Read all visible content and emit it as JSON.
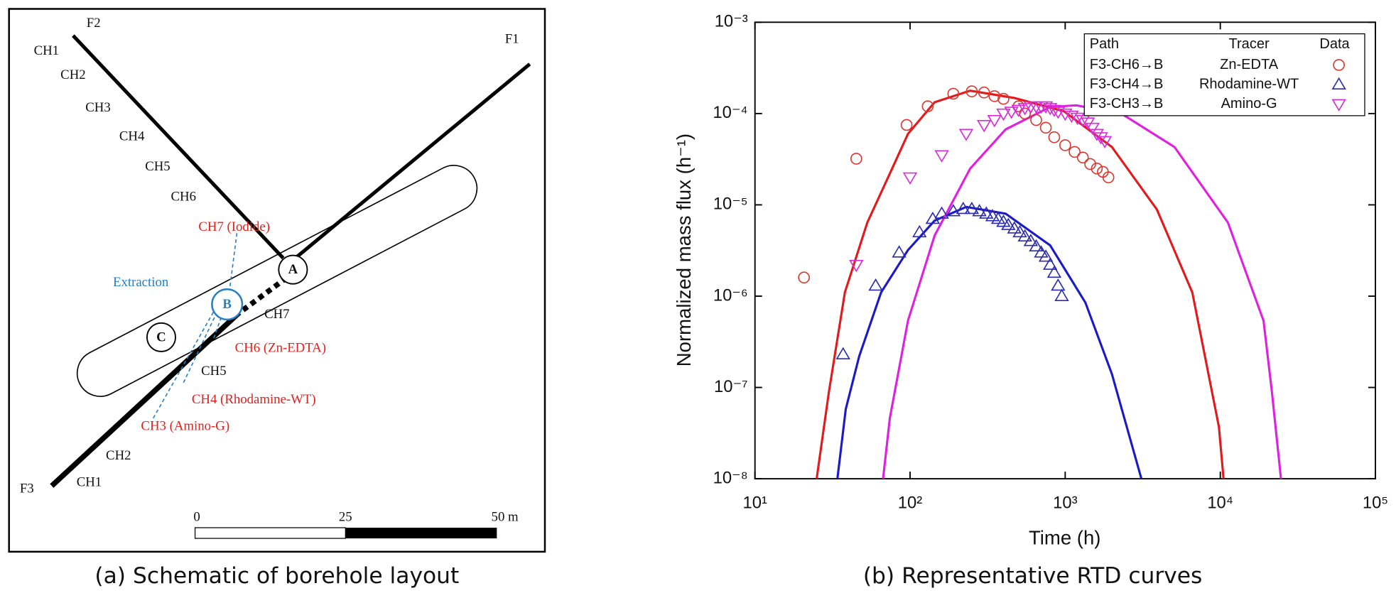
{
  "diagram": {
    "fractures": [
      "F1",
      "F2",
      "F3"
    ],
    "f2_channels": [
      "CH1",
      "CH2",
      "CH3",
      "CH4",
      "CH5",
      "CH6"
    ],
    "injection": [
      "CH7 (Iodide)",
      "CH6 (Zn-EDTA)",
      "CH4 (Rhodamine-WT)",
      "CH3 (Amino-G)"
    ],
    "f3_channels": [
      "CH7",
      "CH5",
      "CH2",
      "CH1"
    ],
    "extraction": "Extraction",
    "boreholes": [
      "A",
      "B",
      "C"
    ],
    "scale": [
      "0",
      "25",
      "50 m"
    ],
    "caption": "(a) Schematic of borehole layout"
  },
  "chart_data": {
    "type": "scatter",
    "caption": "(b) Representative RTD curves",
    "x_label": "Time (h)",
    "y_label": "Normalized mass flux (h⁻¹)",
    "log_x": true,
    "log_y": true,
    "xlim": [
      10,
      100000
    ],
    "ylim": [
      1e-08,
      0.001
    ],
    "xticks": [
      {
        "value": 10,
        "label": "10¹"
      },
      {
        "value": 100,
        "label": "10²"
      },
      {
        "value": 1000,
        "label": "10³"
      },
      {
        "value": 10000,
        "label": "10⁴"
      },
      {
        "value": 100000,
        "label": "10⁵"
      }
    ],
    "yticks": [
      {
        "value": 1e-08,
        "label": "10⁻⁸"
      },
      {
        "value": 1e-07,
        "label": "10⁻⁷"
      },
      {
        "value": 1e-06,
        "label": "10⁻⁶"
      },
      {
        "value": 1e-05,
        "label": "10⁻⁵"
      },
      {
        "value": 0.0001,
        "label": "10⁻⁴"
      },
      {
        "value": 0.001,
        "label": "10⁻³"
      }
    ],
    "legend_headers": [
      "Path",
      "Tracer",
      "Data"
    ],
    "legend": "upper right",
    "series": [
      {
        "name": "F3-CH6→B",
        "tracer": "Zn-EDTA",
        "color": "#d9372f",
        "marker": "circle",
        "x": [
          20.7,
          45,
          95,
          130,
          190,
          250,
          300,
          350,
          400,
          500,
          550,
          650,
          750,
          850,
          1000,
          1150,
          1300,
          1450,
          1600,
          1750,
          1900
        ],
        "values": [
          1.6e-06,
          3.2e-05,
          7.5e-05,
          0.00012,
          0.000165,
          0.000175,
          0.00017,
          0.000155,
          0.000145,
          0.00012,
          0.0001,
          8.5e-05,
          7e-05,
          5.5e-05,
          4.5e-05,
          3.8e-05,
          3.3e-05,
          2.8e-05,
          2.5e-05,
          2.3e-05,
          2e-05
        ]
      },
      {
        "name": "F3-CH4→B",
        "tracer": "Rhodamine-WT",
        "color": "#2b2bb0",
        "marker": "triangle-up",
        "x": [
          37,
          60,
          85,
          115,
          140,
          160,
          190,
          220,
          250,
          280,
          310,
          340,
          370,
          400,
          430,
          470,
          510,
          550,
          600,
          650,
          700,
          750,
          800,
          850,
          900,
          950
        ],
        "values": [
          2.3e-07,
          1.3e-06,
          3e-06,
          5e-06,
          7e-06,
          8e-06,
          8.5e-06,
          9e-06,
          9e-06,
          8.5e-06,
          8e-06,
          7.5e-06,
          7e-06,
          6.5e-06,
          6e-06,
          5.5e-06,
          5e-06,
          4.5e-06,
          4e-06,
          3.5e-06,
          3e-06,
          2.7e-06,
          2.2e-06,
          1.8e-06,
          1.3e-06,
          1e-06
        ]
      },
      {
        "name": "F3-CH3→B",
        "tracer": "Amino-G",
        "color": "#d82ad8",
        "marker": "triangle-down",
        "x": [
          45,
          100,
          160,
          230,
          300,
          350,
          400,
          450,
          500,
          550,
          600,
          650,
          700,
          750,
          800,
          850,
          900,
          1000,
          1100,
          1200,
          1300,
          1400,
          1500,
          1600,
          1700,
          1800
        ],
        "values": [
          2.2e-06,
          2e-05,
          3.5e-05,
          6e-05,
          7.5e-05,
          8.5e-05,
          0.0001,
          0.000105,
          0.00011,
          0.000115,
          0.00012,
          0.00012,
          0.00012,
          0.00012,
          0.000115,
          0.00011,
          0.000105,
          0.0001,
          9.5e-05,
          9e-05,
          8.5e-05,
          8e-05,
          7e-05,
          6e-05,
          5.5e-05,
          5e-05
        ]
      }
    ],
    "fits": [
      {
        "color": "#e31a1c",
        "x": [
          25,
          30,
          38,
          53,
          74,
          97,
          144,
          244,
          470,
          980,
          2000,
          3900,
          6600,
          9800,
          10500
        ],
        "values": [
          1e-08,
          9e-08,
          1.1e-06,
          6.4e-06,
          2.2e-05,
          6e-05,
          0.000133,
          0.000178,
          0.000148,
          0.000106,
          4.3e-05,
          8.9e-06,
          1.1e-06,
          3.7e-08,
          1e-08
        ]
      },
      {
        "color": "#1a1ac8",
        "x": [
          34,
          38.5,
          47,
          65,
          97,
          144,
          230,
          413,
          800,
          1350,
          2000,
          3100
        ],
        "values": [
          1e-08,
          5.8e-08,
          2.2e-07,
          1.1e-06,
          3.2e-06,
          6.7e-06,
          9.5e-06,
          8e-06,
          3.6e-06,
          8.5e-07,
          1.4e-07,
          1e-08
        ]
      },
      {
        "color": "#e020e0",
        "x": [
          67,
          74,
          97,
          144,
          244,
          413,
          800,
          1180,
          2300,
          5070,
          11200,
          19000,
          21500,
          24600
        ],
        "values": [
          1e-08,
          4.6e-08,
          5.4e-07,
          4.6e-06,
          2.5e-05,
          6.7e-05,
          0.000118,
          0.000123,
          0.0001,
          4.3e-05,
          6.4e-06,
          5.4e-07,
          9e-08,
          1e-08
        ]
      }
    ]
  }
}
